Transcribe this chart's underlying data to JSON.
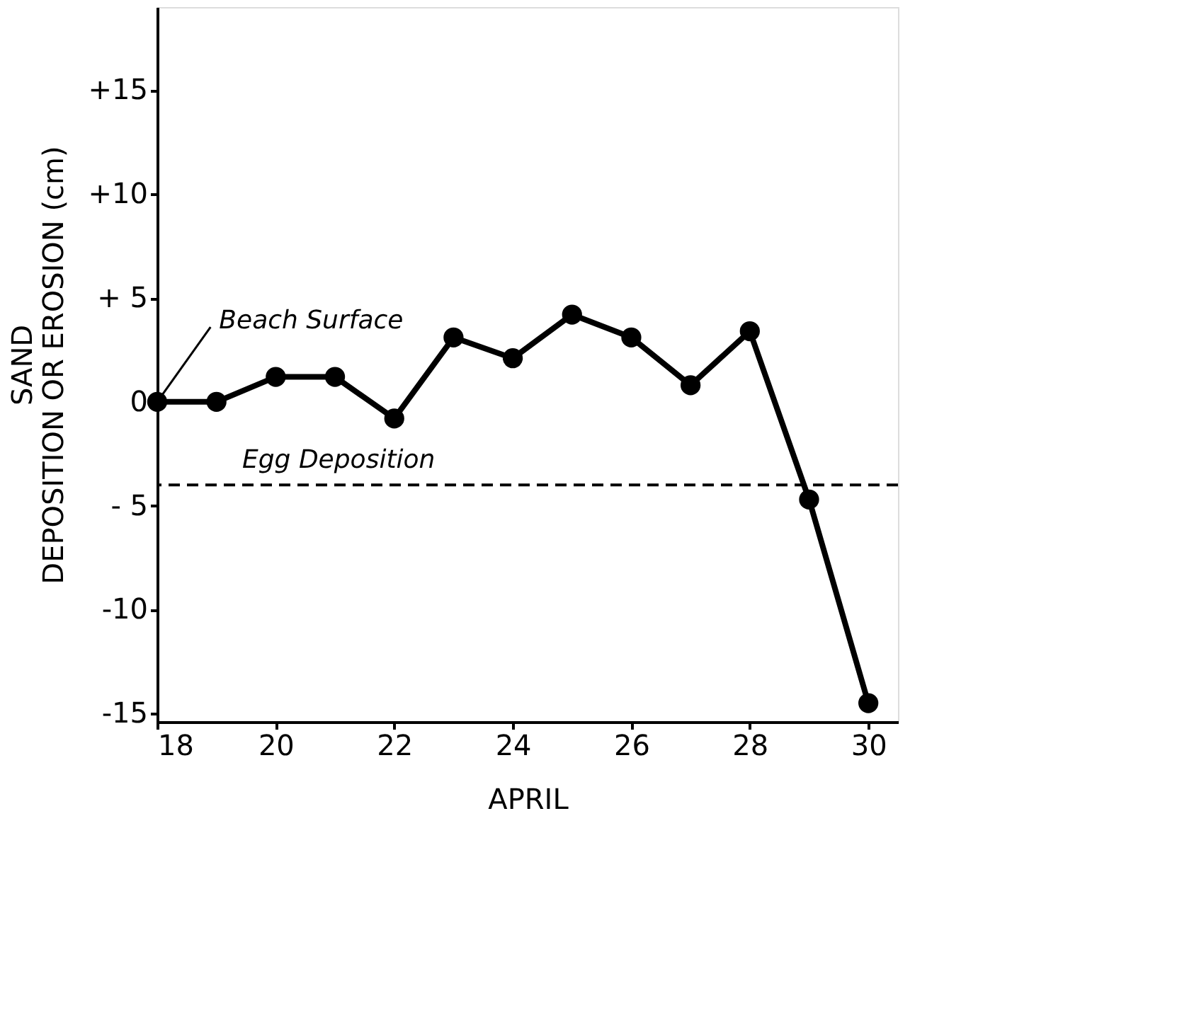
{
  "chart_data": {
    "type": "line",
    "xlabel": "APRIL",
    "ylabel": "SAND\nDEPOSITION OR EROSION (cm)",
    "x": [
      18,
      19,
      20,
      21,
      22,
      23,
      24,
      25,
      26,
      27,
      28,
      29,
      30
    ],
    "series": [
      {
        "color": "#000000",
        "values": [
          0,
          0,
          1.2,
          1.2,
          -0.8,
          3.1,
          2.1,
          4.2,
          3.1,
          0.8,
          3.4,
          -4.7,
          -14.5
        ]
      }
    ],
    "xlim": [
      18,
      30.5
    ],
    "xticks": [
      18,
      20,
      22,
      24,
      26,
      28,
      30
    ],
    "ylim": [
      -15.4,
      19
    ],
    "yticks": [
      {
        "value": 15,
        "label": "+15"
      },
      {
        "value": 10,
        "label": "+10"
      },
      {
        "value": 5,
        "label": "+ 5"
      },
      0,
      {
        "value": -5,
        "label": "- 5"
      },
      -10,
      -15
    ],
    "ref_lines": [
      {
        "axis": "y",
        "value": -4,
        "label": "Egg Deposition",
        "color": "#000000",
        "line_style": "dashed"
      }
    ],
    "annotations": [
      {
        "text": "Beach Surface",
        "x": 18,
        "y": 0
      }
    ],
    "marker": "circle",
    "line_style": "solid",
    "grid": false
  }
}
